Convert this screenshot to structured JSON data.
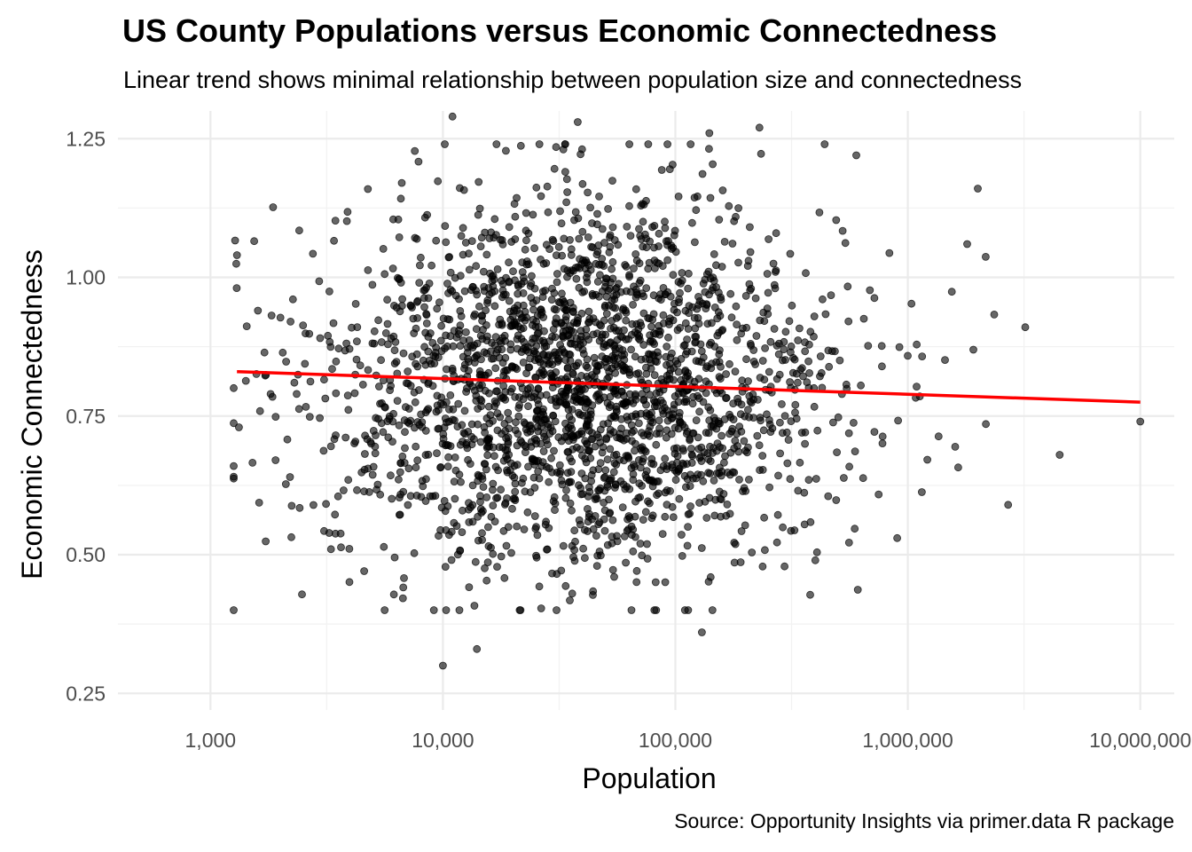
{
  "chart_data": {
    "type": "scatter",
    "title": "US County Populations versus Economic Connectedness",
    "subtitle": "Linear trend shows minimal relationship between population size and connectedness",
    "caption": "Source: Opportunity Insights via primer.data R package",
    "xlabel": "Population",
    "ylabel": "Economic Connectedness",
    "x_scale": "log10",
    "xlim": [
      400,
      14000000
    ],
    "ylim": [
      0.22,
      1.3
    ],
    "x_ticks": [
      1000,
      10000,
      100000,
      1000000,
      10000000
    ],
    "x_tick_labels": [
      "1,000",
      "10,000",
      "100,000",
      "1,000,000",
      "10,000,000"
    ],
    "y_ticks": [
      0.25,
      0.5,
      0.75,
      1.0,
      1.25
    ],
    "y_tick_labels": [
      "0.25",
      "0.50",
      "0.75",
      "1.00",
      "1.25"
    ],
    "grid": true,
    "point_color": "#000000",
    "point_opacity": 0.6,
    "trend_color": "#ff0000",
    "trend_line": {
      "x": [
        1300,
        10000000
      ],
      "y": [
        0.83,
        0.775
      ]
    },
    "series_summary": {
      "n_points": 2400,
      "x_center_log10": 4.6,
      "x_spread_log10": 0.55,
      "y_center": 0.805,
      "y_spread": 0.165
    },
    "highlighted_points": [
      {
        "x": 11000,
        "y": 1.29
      },
      {
        "x": 38000,
        "y": 1.28
      },
      {
        "x": 230000,
        "y": 1.27
      },
      {
        "x": 140000,
        "y": 1.26
      },
      {
        "x": 600000,
        "y": 1.22
      },
      {
        "x": 2000000,
        "y": 1.16
      },
      {
        "x": 1800000,
        "y": 1.06
      },
      {
        "x": 3200000,
        "y": 0.91
      },
      {
        "x": 10000000,
        "y": 0.74
      },
      {
        "x": 4500000,
        "y": 0.68
      },
      {
        "x": 2700000,
        "y": 0.59
      },
      {
        "x": 1300,
        "y": 1.04
      },
      {
        "x": 10000,
        "y": 0.3
      },
      {
        "x": 14000,
        "y": 0.33
      },
      {
        "x": 130000,
        "y": 0.36
      },
      {
        "x": 900000,
        "y": 0.53
      },
      {
        "x": 400000,
        "y": 0.49
      },
      {
        "x": 1600,
        "y": 0.94
      },
      {
        "x": 2200,
        "y": 0.64
      },
      {
        "x": 3300,
        "y": 0.51
      }
    ]
  }
}
